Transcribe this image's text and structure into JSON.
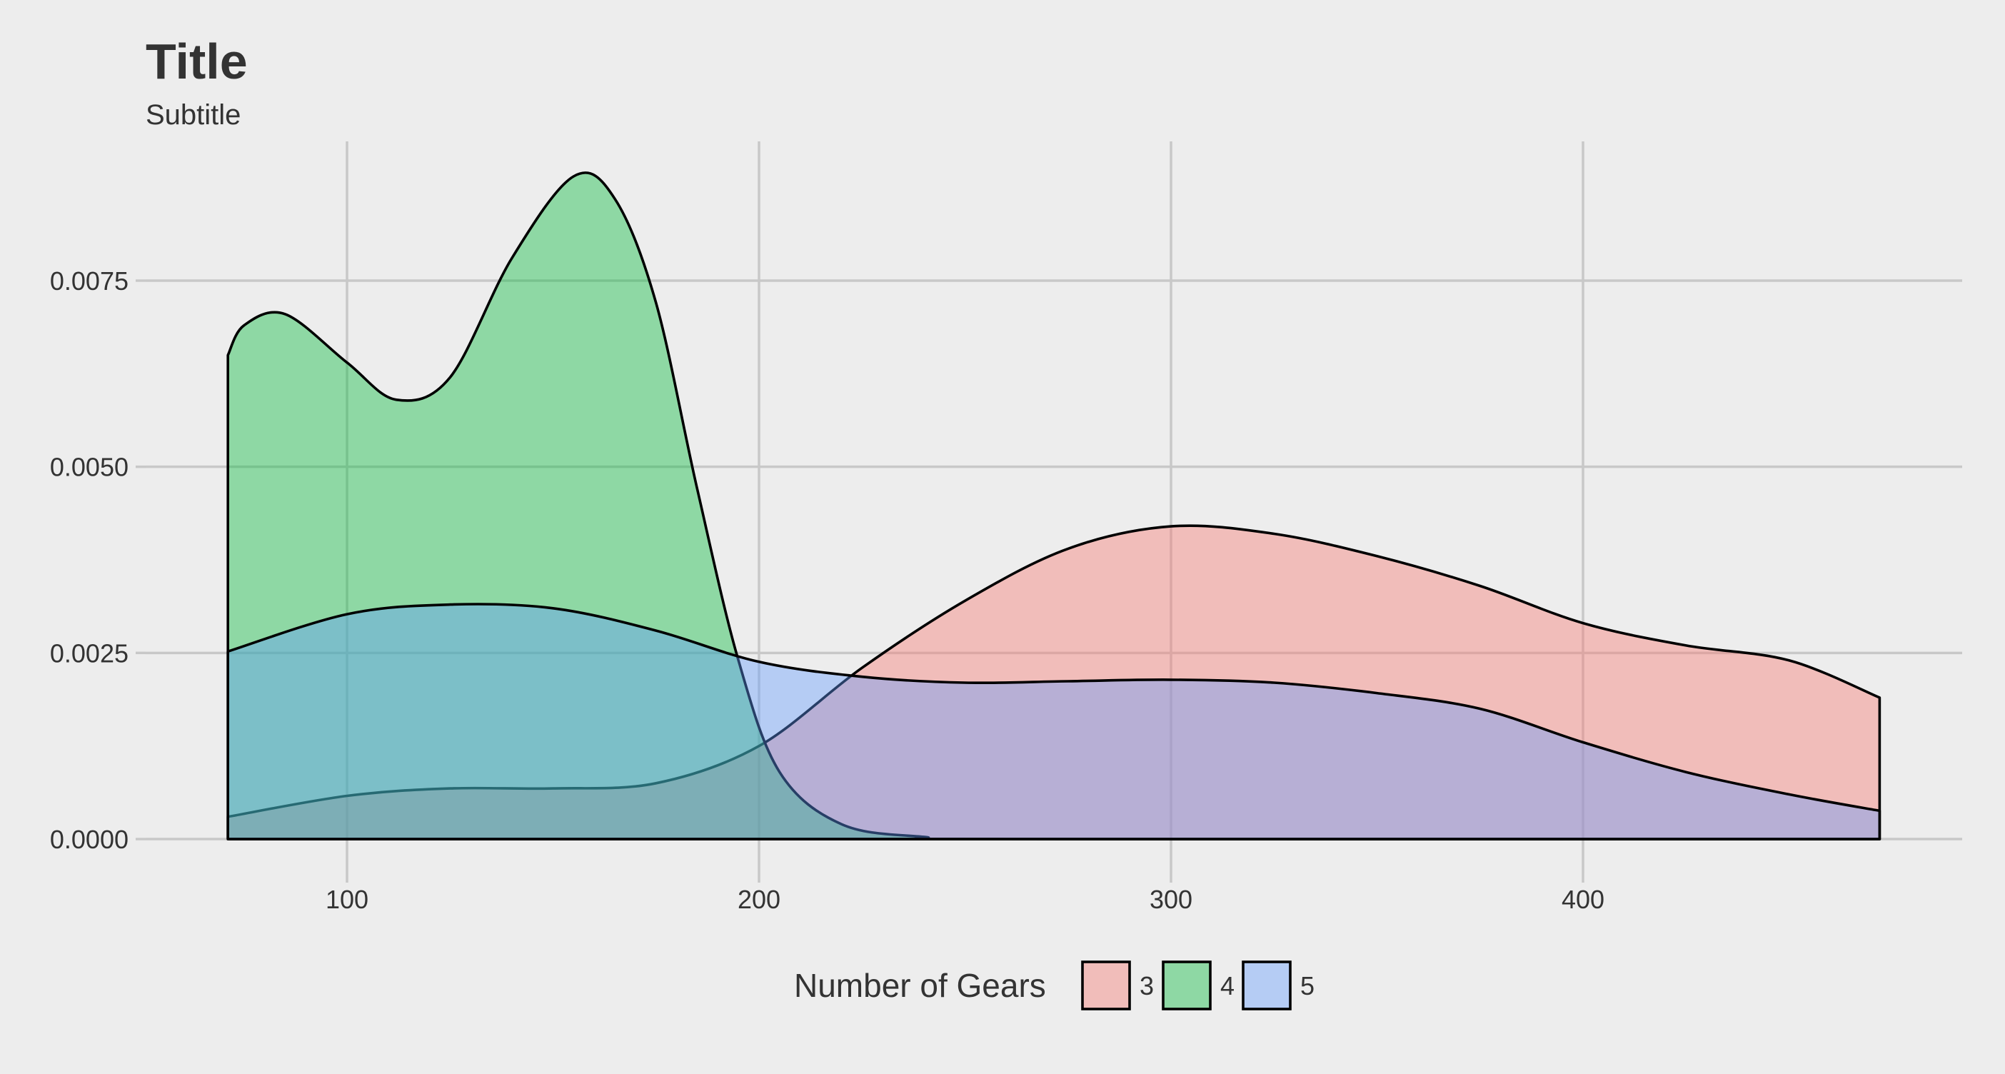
{
  "chart_data": {
    "type": "area",
    "title": "Title",
    "subtitle": "Subtitle",
    "xlabel": "",
    "ylabel": "",
    "xlim": [
      50,
      470
    ],
    "ylim": [
      0,
      0.0092
    ],
    "x_ticks": [
      100,
      200,
      300,
      400
    ],
    "x_tick_labels": [
      "100",
      "200",
      "300",
      "400"
    ],
    "y_ticks": [
      0,
      0.0025,
      0.005,
      0.0075
    ],
    "y_tick_labels": [
      "0.0000",
      "0.0025",
      "0.0050",
      "0.0075"
    ],
    "grid": true,
    "legend": {
      "title": "Number of Gears",
      "position": "bottom"
    },
    "x_range": [
      71.1,
      472
    ],
    "series": [
      {
        "name": "3",
        "color": "#F8766D",
        "fill_opacity": 0.4,
        "points": [
          [
            71.1,
            0.0003
          ],
          [
            100,
            0.00058
          ],
          [
            125,
            0.00068
          ],
          [
            150,
            0.00068
          ],
          [
            175,
            0.00075
          ],
          [
            200,
            0.00125
          ],
          [
            225,
            0.0023
          ],
          [
            250,
            0.0032
          ],
          [
            275,
            0.0039
          ],
          [
            300,
            0.0042
          ],
          [
            325,
            0.0041
          ],
          [
            350,
            0.0038
          ],
          [
            375,
            0.0034
          ],
          [
            400,
            0.0029
          ],
          [
            425,
            0.0026
          ],
          [
            450,
            0.0024
          ],
          [
            472,
            0.0019
          ]
        ]
      },
      {
        "name": "4",
        "color": "#00BA38",
        "fill_opacity": 0.4,
        "points": [
          [
            71.1,
            0.0065
          ],
          [
            75,
            0.0069
          ],
          [
            85,
            0.00705
          ],
          [
            100,
            0.0064
          ],
          [
            112,
            0.0059
          ],
          [
            125,
            0.0062
          ],
          [
            140,
            0.0078
          ],
          [
            155,
            0.0089
          ],
          [
            165,
            0.0086
          ],
          [
            175,
            0.0072
          ],
          [
            185,
            0.0047
          ],
          [
            195,
            0.0024
          ],
          [
            205,
            0.0009
          ],
          [
            220,
            0.0002
          ],
          [
            240,
            3e-05
          ],
          [
            260,
            0.0
          ],
          [
            472,
            0.0
          ]
        ]
      },
      {
        "name": "5",
        "color": "#619CFF",
        "fill_opacity": 0.4,
        "points": [
          [
            71.1,
            0.00252
          ],
          [
            100,
            0.00302
          ],
          [
            125,
            0.00315
          ],
          [
            150,
            0.0031
          ],
          [
            175,
            0.0028
          ],
          [
            200,
            0.00238
          ],
          [
            225,
            0.00218
          ],
          [
            250,
            0.0021
          ],
          [
            275,
            0.00212
          ],
          [
            300,
            0.00214
          ],
          [
            325,
            0.0021
          ],
          [
            350,
            0.00196
          ],
          [
            375,
            0.00175
          ],
          [
            400,
            0.0013
          ],
          [
            425,
            0.0009
          ],
          [
            450,
            0.0006
          ],
          [
            472,
            0.00038
          ]
        ]
      }
    ]
  }
}
